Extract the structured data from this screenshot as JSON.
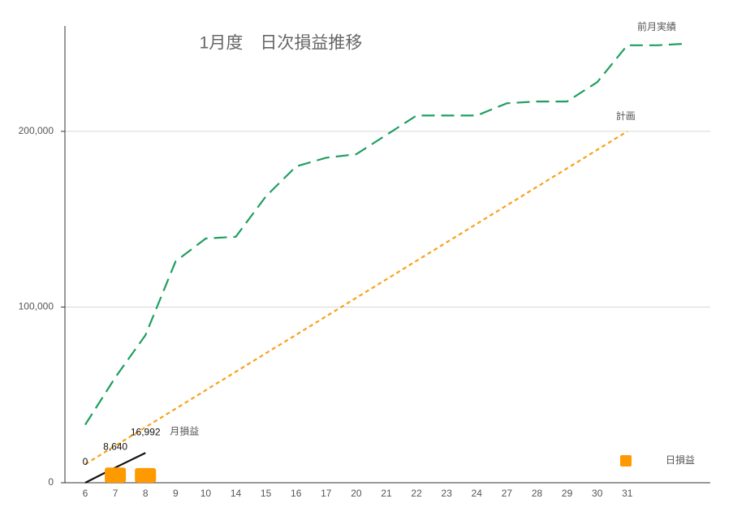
{
  "chart_data": {
    "type": "combo",
    "title": "1月度　日次損益推移",
    "categories": [
      "6",
      "7",
      "8",
      "9",
      "10",
      "14",
      "15",
      "16",
      "17",
      "20",
      "21",
      "22",
      "23",
      "24",
      "27",
      "28",
      "29",
      "30",
      "31",
      null,
      null
    ],
    "ylim": [
      0,
      260000
    ],
    "yticks": [
      0,
      {
        "value": 100000,
        "label": "100,000"
      },
      {
        "value": 200000,
        "label": "200,000"
      }
    ],
    "grid": true,
    "series": [
      {
        "name": "前月実績",
        "type": "line",
        "line_style": "dashed",
        "color": "#1f9e60",
        "values": [
          33000,
          60000,
          84000,
          126000,
          139000,
          140000,
          163000,
          180000,
          185000,
          187000,
          198000,
          209000,
          209000,
          209000,
          216000,
          217000,
          217000,
          228000,
          249000,
          249000,
          250000
        ]
      },
      {
        "name": "計画",
        "type": "line",
        "line_style": "dotted",
        "color": "#f7a21b",
        "values": [
          10526,
          21053,
          31579,
          42105,
          52632,
          63158,
          73684,
          84211,
          94737,
          105263,
          115789,
          126316,
          136842,
          147368,
          157895,
          168421,
          178947,
          189474,
          200000,
          null,
          null
        ]
      },
      {
        "name": "月損益",
        "type": "line",
        "line_style": "solid",
        "color": "#111111",
        "values": [
          0,
          8640,
          16992,
          null,
          null,
          null,
          null,
          null,
          null,
          null,
          null,
          null,
          null,
          null,
          null,
          null,
          null,
          null,
          null,
          null,
          null
        ],
        "value_labels": [
          "0",
          "8,640",
          "16,992",
          null,
          null,
          null,
          null,
          null,
          null,
          null,
          null,
          null,
          null,
          null,
          null,
          null,
          null,
          null,
          null,
          null,
          null
        ]
      },
      {
        "name": "日損益",
        "type": "bar",
        "color": "#ff9900",
        "values": [
          0,
          8640,
          8352,
          null,
          null,
          null,
          null,
          null,
          null,
          null,
          null,
          null,
          null,
          null,
          null,
          null,
          null,
          null,
          null,
          null,
          null
        ]
      }
    ]
  }
}
